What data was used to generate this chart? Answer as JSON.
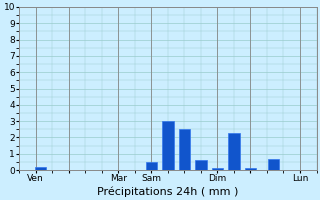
{
  "xlabel": "Précipitations 24h ( mm )",
  "background_color": "#cceeff",
  "bar_color": "#1155cc",
  "bar_edge_color": "#3377ee",
  "grid_color": "#99cccc",
  "spine_color": "#888888",
  "ylim": [
    0,
    10
  ],
  "yticks": [
    0,
    1,
    2,
    3,
    4,
    5,
    6,
    7,
    8,
    9,
    10
  ],
  "ytick_fontsize": 6.5,
  "xtick_fontsize": 6.5,
  "xlabel_fontsize": 8,
  "xlim": [
    -0.5,
    8.5
  ],
  "x_day_ticks": [
    0.0,
    1.0,
    2.5,
    3.5,
    5.5,
    6.5,
    8.0
  ],
  "x_day_labels": [
    "Ven",
    "",
    "Mar",
    "Sam",
    "Dim",
    "",
    "Lun"
  ],
  "x_vlines": [
    0.0,
    1.0,
    2.5,
    3.5,
    5.5,
    6.5,
    8.0
  ],
  "bar_positions": [
    0.15,
    3.5,
    4.0,
    4.5,
    5.0,
    5.5,
    6.0,
    6.5,
    7.2
  ],
  "bar_heights": [
    0.2,
    0.5,
    3.0,
    2.5,
    0.6,
    0.1,
    2.3,
    0.1,
    0.7
  ],
  "bar_width": 0.35
}
